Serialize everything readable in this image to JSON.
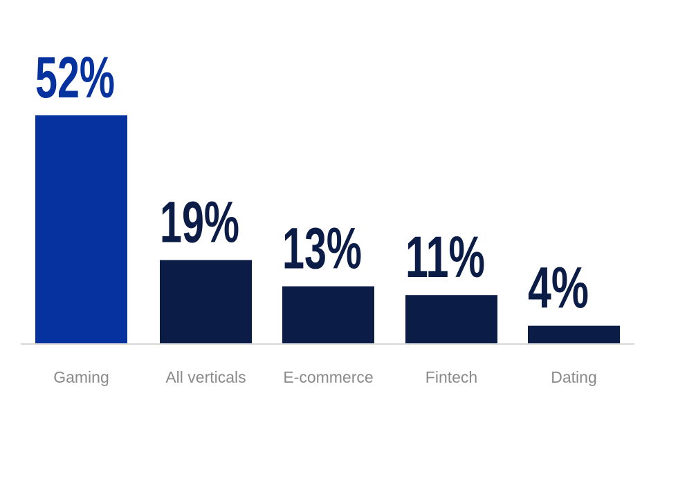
{
  "chart_data": {
    "type": "bar",
    "categories": [
      "Gaming",
      "All verticals",
      "E-commerce",
      "Fintech",
      "Dating"
    ],
    "values": [
      52,
      19,
      13,
      11,
      4
    ],
    "value_labels": [
      "52%",
      "19%",
      "13%",
      "11%",
      "4%"
    ],
    "unit": "%",
    "title": "",
    "xlabel": "",
    "ylabel": "",
    "ylim": [
      0,
      52
    ],
    "grid": false,
    "legend": "none",
    "highlight_index": 0,
    "colors": {
      "highlight": "#0632a0",
      "default": "#0b1c46",
      "value_highlight": "#0632a0",
      "value_default": "#0b1c46",
      "category_text": "#8a8a8a",
      "baseline": "#d8d8d8"
    }
  }
}
